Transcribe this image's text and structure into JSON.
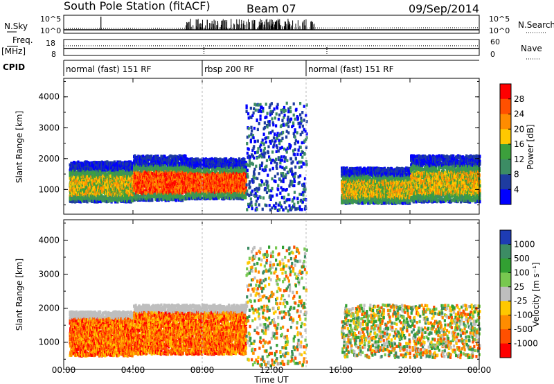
{
  "header": {
    "title": "South Pole Station (fitACF)",
    "beam": "Beam 07",
    "date": "09/Sep/2014"
  },
  "small_panels": {
    "nsky": {
      "label": "N.Sky",
      "left_ticks": [
        "10^5",
        "10^0"
      ],
      "right_label": "N.Search",
      "right_ticks": [
        "10^5",
        "10^0"
      ]
    },
    "freq": {
      "label_line1": "Freq.",
      "label_line2": "[MHz]",
      "left_ticks": [
        "18",
        "8"
      ],
      "right_label": "Nave",
      "right_ticks": [
        "60",
        "0"
      ]
    }
  },
  "cpid": {
    "label": "CPID",
    "segments": [
      {
        "name": "normal (fast) 151 RF",
        "start_h": 0,
        "end_h": 8.0
      },
      {
        "name": "rbsp 200 RF",
        "start_h": 8.0,
        "end_h": 14.0
      },
      {
        "name": "normal (fast) 151 RF",
        "start_h": 14.0,
        "end_h": 24.0
      }
    ]
  },
  "chart_data": [
    {
      "type": "heatmap",
      "title": "",
      "xlabel": "Time UT",
      "ylabel": "Slant Range [km]",
      "xlim_hours": [
        0,
        24
      ],
      "ylim_km": [
        200,
        4600
      ],
      "xticks": [
        "00:00",
        "04:00",
        "08:00",
        "12:00",
        "16:00",
        "20:00",
        "00:00"
      ],
      "yticks": [
        1000,
        2000,
        3000,
        4000
      ],
      "colorbar": {
        "label": "Power [dB]",
        "ticks": [
          "28",
          "24",
          "20",
          "16",
          "12",
          "8",
          "4"
        ],
        "colors": [
          "#ff0000",
          "#ff5000",
          "#ff8c00",
          "#ffc800",
          "#3ca03c",
          "#3c8c64",
          "#1e3ca0",
          "#0000ff"
        ]
      },
      "bands": [
        {
          "start_h": 0.3,
          "end_h": 4.0,
          "range_lo": 600,
          "range_hi": 1900,
          "level": "mid"
        },
        {
          "start_h": 4.0,
          "end_h": 7.0,
          "range_lo": 650,
          "range_hi": 2100,
          "level": "high"
        },
        {
          "start_h": 7.0,
          "end_h": 10.5,
          "range_lo": 700,
          "range_hi": 2000,
          "level": "high"
        },
        {
          "start_h": 10.5,
          "end_h": 14.0,
          "range_lo": 300,
          "range_hi": 3800,
          "level": "sparse"
        },
        {
          "start_h": 16.0,
          "end_h": 20.0,
          "range_lo": 550,
          "range_hi": 1700,
          "level": "mid"
        },
        {
          "start_h": 20.0,
          "end_h": 24.0,
          "range_lo": 600,
          "range_hi": 2100,
          "level": "mid"
        }
      ]
    },
    {
      "type": "heatmap",
      "title": "",
      "xlabel": "Time UT",
      "ylabel": "Slant Range [km]",
      "xlim_hours": [
        0,
        24
      ],
      "ylim_km": [
        200,
        4600
      ],
      "xticks": [
        "00:00",
        "04:00",
        "08:00",
        "12:00",
        "16:00",
        "20:00",
        "00:00"
      ],
      "yticks": [
        1000,
        2000,
        3000,
        4000
      ],
      "colorbar": {
        "label": "Velocity [m s⁻¹]",
        "ticks": [
          "1000",
          "500",
          "100",
          "25",
          "-25",
          "-100",
          "-500",
          "-1000"
        ],
        "colors": [
          "#1e3cb4",
          "#3c8c64",
          "#32a032",
          "#78c850",
          "#bebebe",
          "#ffc800",
          "#ff8c00",
          "#ff5000",
          "#ff0000"
        ]
      },
      "bands": [
        {
          "start_h": 0.3,
          "end_h": 4.0,
          "range_lo": 600,
          "range_hi": 1900,
          "level": "negative"
        },
        {
          "start_h": 4.0,
          "end_h": 10.5,
          "range_lo": 650,
          "range_hi": 2100,
          "level": "negative"
        },
        {
          "start_h": 10.5,
          "end_h": 14.0,
          "range_lo": 300,
          "range_hi": 3800,
          "level": "mixed"
        },
        {
          "start_h": 16.0,
          "end_h": 24.0,
          "range_lo": 550,
          "range_hi": 2100,
          "level": "mixed"
        }
      ]
    }
  ]
}
